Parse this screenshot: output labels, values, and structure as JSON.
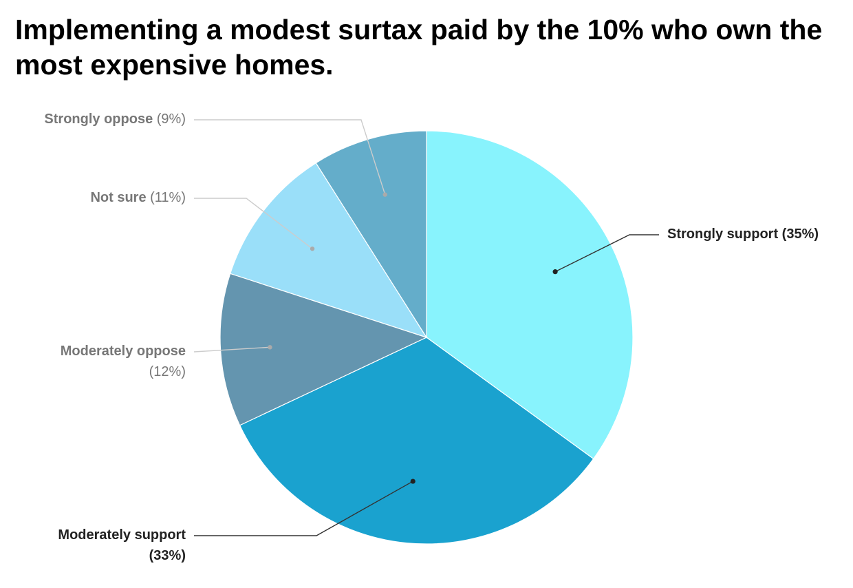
{
  "chart_data": {
    "type": "pie",
    "title": "Implementing a modest surtax paid by the 10% who own the most expensive homes.",
    "slices": [
      {
        "label": "Strongly support",
        "pct_text": "(35%)",
        "value": 35,
        "color": "#88F3FD",
        "emphasis": true
      },
      {
        "label": "Moderately support",
        "pct_text": "(33%)",
        "value": 33,
        "color": "#1AA2CF",
        "emphasis": true
      },
      {
        "label": "Moderately oppose",
        "pct_text": "(12%)",
        "value": 12,
        "color": "#6495AF",
        "emphasis": false
      },
      {
        "label": "Not sure",
        "pct_text": "(11%)",
        "value": 11,
        "color": "#9ADFF9",
        "emphasis": false
      },
      {
        "label": "Strongly oppose",
        "pct_text": "(9%)",
        "value": 9,
        "color": "#64ADCA",
        "emphasis": false
      }
    ],
    "start": "top",
    "direction": "clockwise"
  }
}
